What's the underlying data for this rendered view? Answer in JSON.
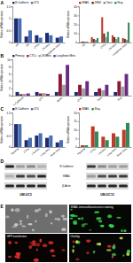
{
  "chart_data": [
    {
      "type": "bar",
      "panel_label": "A",
      "y_label": "Relative mRNA expression",
      "categories": [
        "2D",
        "3D",
        "CTCs",
        "LN Mets",
        "Lung/bone Mets"
      ],
      "series": [
        {
          "name": "E-Cadherin",
          "color": "#1f2d6e",
          "values": [
            1,
            0.25,
            0.3,
            0.4,
            0.2
          ]
        },
        {
          "name": "ZO1",
          "color": "#4a6fb5",
          "values": [
            1,
            0.5,
            0.2,
            0.3,
            0.25
          ]
        }
      ],
      "ylim": [
        0,
        1.5
      ],
      "yticks": [
        0,
        0.5,
        1,
        1.5
      ],
      "legend": "top",
      "grid": false
    },
    {
      "type": "bar",
      "y_label": "Relative mRNA expression",
      "categories": [
        "2D",
        "3D",
        "CTCs",
        "LN Mets",
        "Lung/bone Mets"
      ],
      "series": [
        {
          "name": "SNAIL",
          "color": "#c0392b",
          "values": [
            1,
            6,
            28,
            8,
            5
          ]
        },
        {
          "name": "ZEB1",
          "color": "#5b2c1a",
          "values": [
            1,
            4,
            10,
            6,
            4
          ]
        },
        {
          "name": "Twist",
          "color": "#8c8c8c",
          "values": [
            1,
            3,
            6,
            4,
            3
          ]
        },
        {
          "name": "Slug",
          "color": "#2e8b57",
          "values": [
            1,
            5,
            12,
            6,
            22
          ]
        }
      ],
      "ylim": [
        0,
        40
      ],
      "yticks": [
        0,
        10,
        20,
        30,
        40
      ],
      "legend": "top",
      "grid": false
    },
    {
      "type": "bar",
      "panel_label": "B",
      "y_label": "Relative mRNA expression",
      "categories": [
        "E-Cadherin",
        "ZO1",
        "SNAIL",
        "ZEB1",
        "Twist",
        "Slug"
      ],
      "series": [
        {
          "name": "Primary",
          "color": "#1f2d6e",
          "values": [
            1,
            1,
            1,
            1,
            1,
            1
          ]
        },
        {
          "name": "CTCs",
          "color": "#8b1a3a",
          "values": [
            0.4,
            0.6,
            6,
            3,
            2,
            4
          ]
        },
        {
          "name": "LN Mets",
          "color": "#a0a0a0",
          "values": [
            0.5,
            0.7,
            3,
            2,
            1.5,
            2.5
          ]
        },
        {
          "name": "Lung/bone Mets",
          "color": "#6a2c82",
          "values": [
            0.6,
            0.5,
            8.5,
            4,
            3,
            6
          ]
        }
      ],
      "ylim": [
        0,
        10
      ],
      "yticks": [
        0,
        2,
        4,
        6,
        8,
        10
      ],
      "legend": "top",
      "grid": false
    },
    {
      "type": "bar",
      "panel_label": "C",
      "y_label": "Relative mRNA expression",
      "categories": [
        "Parental",
        "CTCs",
        "LN Mets",
        "Lung Mets",
        "Bone Mets"
      ],
      "series": [
        {
          "name": "E-Cadherin",
          "color": "#1f2d6e",
          "values": [
            1,
            0.3,
            0.5,
            0.4,
            0.2
          ]
        },
        {
          "name": "ZO1",
          "color": "#4a6fb5",
          "values": [
            1,
            0.4,
            0.6,
            0.5,
            0.3
          ]
        }
      ],
      "ylim": [
        0,
        1.5
      ],
      "yticks": [
        0,
        0.5,
        1,
        1.5
      ],
      "legend": "top",
      "grid": false
    },
    {
      "type": "bar",
      "y_label": "Relative mRNA expression",
      "categories": [
        "Parental",
        "CTCs",
        "LN Mets",
        "Lung Mets",
        "Bone Mets"
      ],
      "series": [
        {
          "name": "SNAIL",
          "color": "#c0392b",
          "values": [
            1,
            12,
            6,
            8,
            10
          ]
        },
        {
          "name": "Slug",
          "color": "#2e8b57",
          "values": [
            1,
            9,
            4,
            6,
            14
          ]
        }
      ],
      "ylim": [
        0,
        20
      ],
      "yticks": [
        0,
        5,
        10,
        15,
        20
      ],
      "legend": "top",
      "grid": false
    }
  ],
  "blot": {
    "panel_label": "D",
    "row_labels": [
      "E-Cadherin",
      "SNAIL",
      "β-Actin"
    ],
    "cell_lines": [
      "UM-UC3",
      "UM-UC13"
    ],
    "band_intensity": [
      [
        [
          0.9,
          0.3,
          0.4,
          0.2
        ],
        [
          0.2,
          0.8,
          0.7,
          0.9
        ],
        [
          0.9,
          0.9,
          0.9,
          0.9
        ]
      ],
      [
        [
          0.8,
          0.4,
          0.3,
          0.3
        ],
        [
          0.3,
          0.7,
          0.8,
          0.8
        ],
        [
          0.9,
          0.9,
          0.9,
          0.9
        ]
      ]
    ]
  },
  "images": {
    "panel_label": "E",
    "labels": [
      "SNAIL immunofluorescence staining",
      "GFP transfection",
      "Overlay"
    ]
  }
}
